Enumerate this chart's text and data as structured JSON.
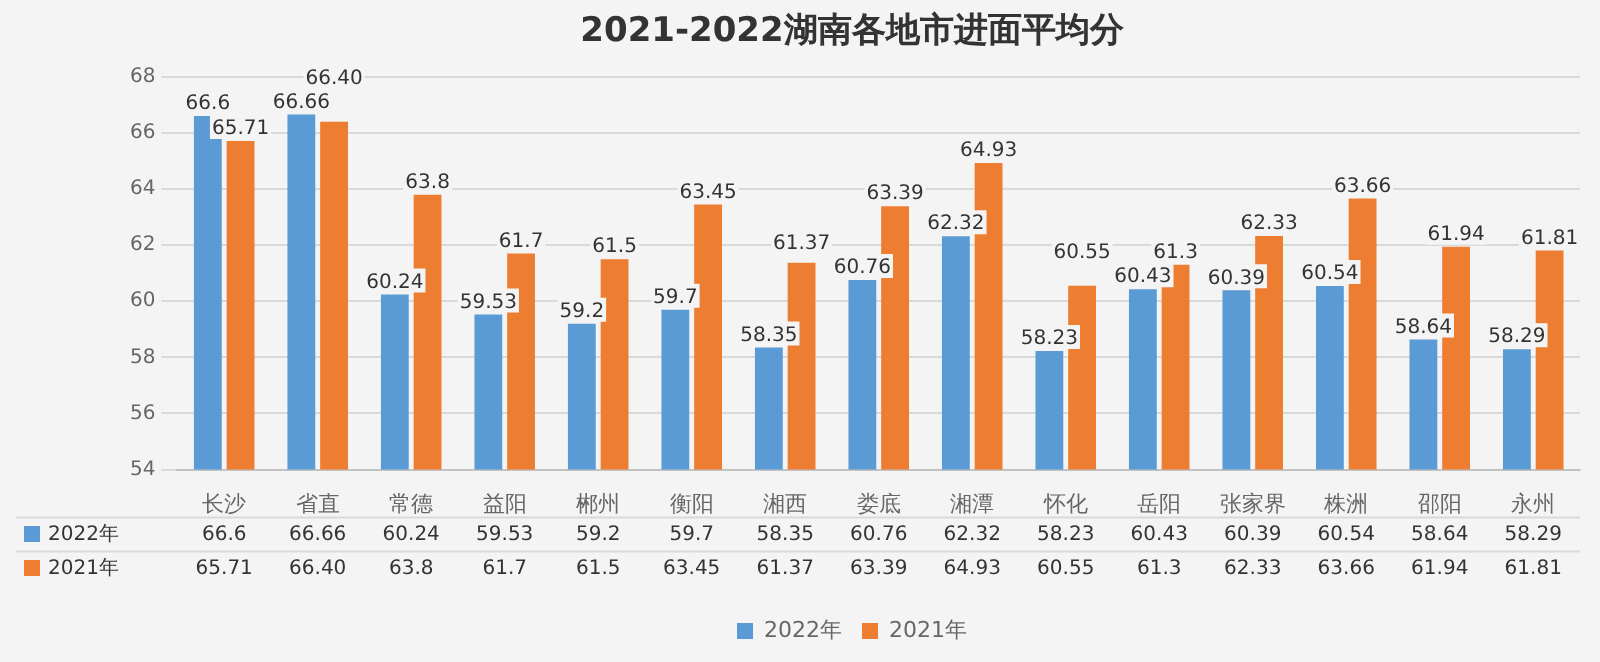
{
  "chart_data": {
    "type": "bar",
    "title": "2021-2022湖南各地市进面平均分",
    "categories": [
      "长沙",
      "省直",
      "常德",
      "益阳",
      "郴州",
      "衡阳",
      "湘西",
      "娄底",
      "湘潭",
      "怀化",
      "岳阳",
      "张家界",
      "株洲",
      "邵阳",
      "永州"
    ],
    "series": [
      {
        "name": "2022年",
        "color": "#5b9bd5",
        "values": [
          66.6,
          66.66,
          60.24,
          59.53,
          59.2,
          59.7,
          58.35,
          60.76,
          62.32,
          58.23,
          60.43,
          60.39,
          60.54,
          58.64,
          58.29
        ],
        "value_labels": [
          "66.6",
          "66.66",
          "60.24",
          "59.53",
          "59.2",
          "59.7",
          "58.35",
          "60.76",
          "62.32",
          "58.23",
          "60.43",
          "60.39",
          "60.54",
          "58.64",
          "58.29"
        ]
      },
      {
        "name": "2021年",
        "color": "#ed7d31",
        "values": [
          65.71,
          66.4,
          63.8,
          61.7,
          61.5,
          63.45,
          61.37,
          63.39,
          64.93,
          60.55,
          61.3,
          62.33,
          63.66,
          61.94,
          61.81
        ],
        "value_labels": [
          "65.71",
          "66.40",
          "63.8",
          "61.7",
          "61.5",
          "63.45",
          "61.37",
          "63.39",
          "64.93",
          "60.55",
          "61.3",
          "62.33",
          "63.66",
          "61.94",
          "61.81"
        ]
      }
    ],
    "ylim": [
      54,
      68
    ],
    "yticks": [
      54,
      56,
      58,
      60,
      62,
      64,
      66,
      68
    ],
    "grid": "y",
    "legend": "bottom"
  }
}
